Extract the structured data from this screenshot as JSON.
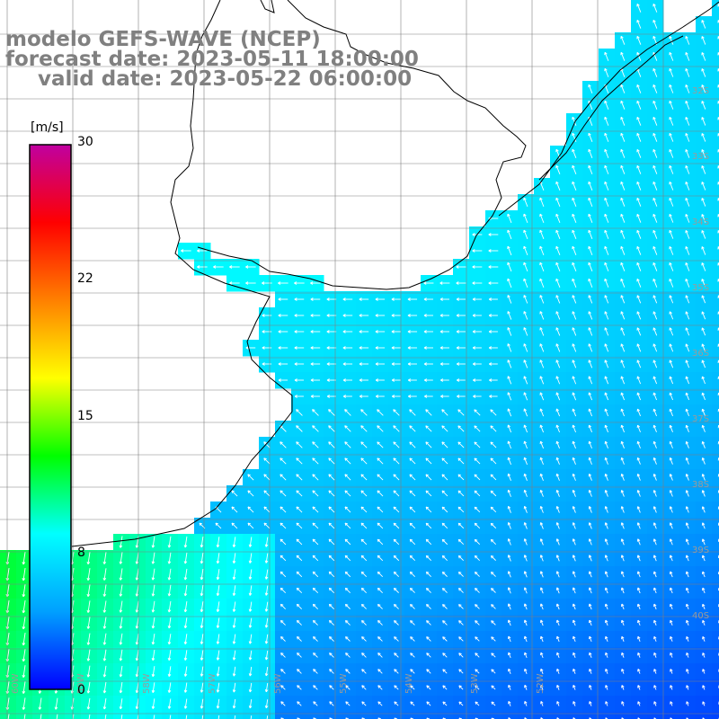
{
  "title": {
    "line1": "modelo GEFS-WAVE (NCEP)",
    "line2": "forecast date: 2023-05-11 18:00:00",
    "line3": "valid date: 2023-05-22 06:00:00"
  },
  "colorbar": {
    "unit": "[m/s]",
    "ticks": [
      "30",
      "22",
      "15",
      "8",
      "0"
    ],
    "tick_values": [
      30,
      22,
      15,
      8,
      0
    ],
    "min": 0,
    "max": 30,
    "colors": [
      "#0000ff",
      "#00a0ff",
      "#00ffff",
      "#00ff00",
      "#ffff00",
      "#ff8000",
      "#ff0000",
      "#c000a0"
    ]
  },
  "lat_labels": [
    "32S",
    "33S",
    "34S",
    "35S",
    "36S",
    "37S",
    "38S",
    "39S",
    "40S"
  ],
  "lon_labels": [
    "60W",
    "59W",
    "58W",
    "57W",
    "56W",
    "55W",
    "54W",
    "53W",
    "52W"
  ],
  "colors": {
    "land": "#ffffff",
    "coast": "#000000",
    "grid": "#808080",
    "arrow": "#ffffff",
    "title": "#808080"
  }
}
